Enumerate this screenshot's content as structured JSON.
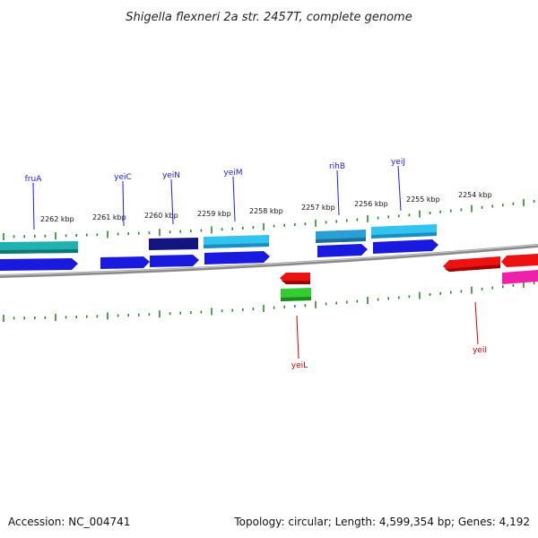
{
  "title": "Shigella flexneri 2a str. 2457T, complete genome",
  "footer": {
    "accession": "Accession: NC_004741",
    "summary": "Topology: circular; Length: 4,599,354 bp; Genes: 4,192"
  },
  "kbp_labels": [
    "2262 kbp",
    "2261 kbp",
    "2260 kbp",
    "2259 kbp",
    "2258 kbp",
    "2257 kbp",
    "2256 kbp",
    "2255 kbp",
    "2254 kbp"
  ],
  "genes_forward_labels": [
    "fruA",
    "yeiC",
    "yeiN",
    "yeiM",
    "rihB",
    "yeiJ"
  ],
  "genes_reverse_labels": [
    "yeiL",
    "yeiI"
  ],
  "colors": {
    "label_forward": "#1a1aff",
    "label_reverse": "#e00000",
    "tick": "#2a8a2a",
    "backbone": "#8a8a8a",
    "teal": "#20b2b2",
    "blue": "#1a1adf",
    "navy": "#141480",
    "sky": "#33c3f0",
    "steel": "#2a9fd6",
    "red": "#ee1111",
    "green": "#33cc33",
    "magenta": "#ee22aa"
  }
}
